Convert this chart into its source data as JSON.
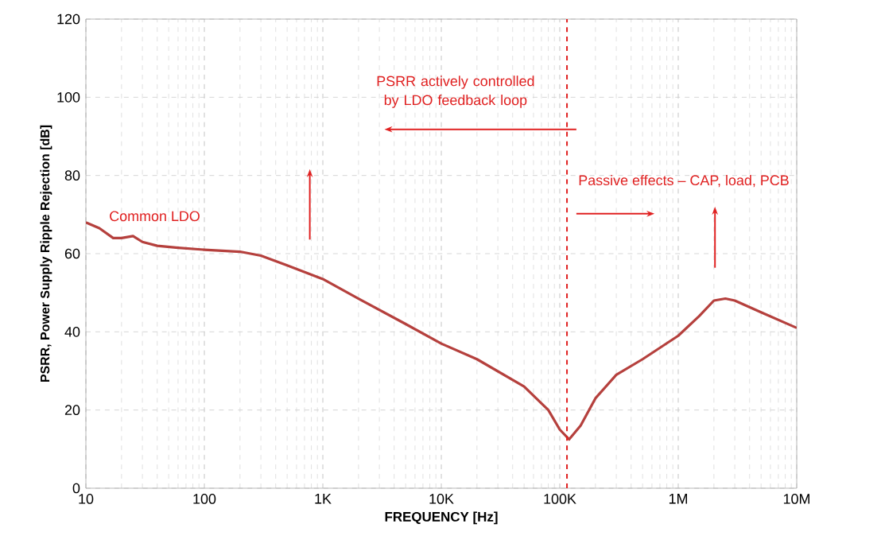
{
  "chart_data": {
    "type": "line",
    "xlabel": "FREQUENCY [Hz]",
    "ylabel": "PSRR, Power Supply Ripple Rejection [dB]",
    "log": "x",
    "grid": true,
    "xlim": [
      10,
      10000000
    ],
    "ylim": [
      0,
      120
    ],
    "xticks": [
      {
        "value": 10,
        "label": "10"
      },
      {
        "value": 100,
        "label": "100"
      },
      {
        "value": 1000,
        "label": "1K"
      },
      {
        "value": 10000,
        "label": "10K"
      },
      {
        "value": 100000,
        "label": "100K"
      },
      {
        "value": 1000000,
        "label": "1M"
      },
      {
        "value": 10000000,
        "label": "10M"
      }
    ],
    "yticks": [
      0,
      20,
      40,
      60,
      80,
      100,
      120
    ],
    "x": [
      10,
      13,
      17,
      20,
      25,
      30,
      40,
      60,
      100,
      200,
      300,
      500,
      1000,
      2000,
      5000,
      10000,
      20000,
      50000,
      80000,
      100000,
      120000,
      150000,
      200000,
      300000,
      500000,
      1000000,
      1500000,
      2000000,
      2500000,
      3000000,
      5000000,
      10000000
    ],
    "series": [
      {
        "color": "#b5403d",
        "values": [
          68,
          66.5,
          64,
          64,
          64.5,
          63,
          62,
          61.5,
          61,
          60.5,
          59.5,
          57,
          53.5,
          48.5,
          42,
          37,
          33,
          26,
          20,
          15,
          12.5,
          16,
          23,
          29,
          33,
          39,
          44,
          48,
          48.5,
          48,
          45,
          41
        ]
      }
    ],
    "ref_lines": [
      {
        "axis": "x",
        "value": 115000,
        "color": "#e02020",
        "line_style": "dashed"
      }
    ],
    "annotations": [
      "PSRR actively controlled by LDO feedback loop",
      "Common LDO",
      "Passive effects – CAP, load, PCB"
    ]
  }
}
